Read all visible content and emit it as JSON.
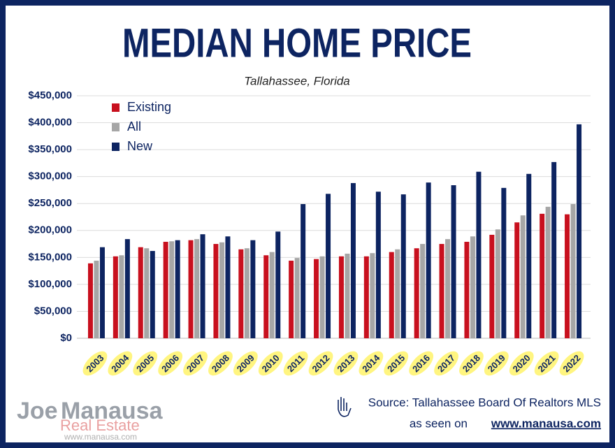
{
  "chart_data": {
    "type": "bar",
    "title": "MEDIAN HOME PRICE",
    "subtitle": "Tallahassee, Florida",
    "categories": [
      "2003",
      "2004",
      "2005",
      "2006",
      "2007",
      "2008",
      "2009",
      "2010",
      "2011",
      "2012",
      "2013",
      "2014",
      "2015",
      "2016",
      "2017",
      "2018",
      "2019",
      "2020",
      "2021",
      "2022"
    ],
    "series": [
      {
        "name": "Existing",
        "color": "#c8101e",
        "values": [
          139000,
          152000,
          169000,
          179000,
          182000,
          175000,
          165000,
          154000,
          144000,
          147000,
          152000,
          152000,
          160000,
          167000,
          175000,
          179000,
          192000,
          215000,
          231000,
          230000
        ]
      },
      {
        "name": "All",
        "color": "#a6a6a6",
        "values": [
          144000,
          154000,
          167000,
          180000,
          184000,
          178000,
          167000,
          160000,
          149000,
          152000,
          157000,
          158000,
          165000,
          175000,
          184000,
          189000,
          202000,
          228000,
          244000,
          249000
        ]
      },
      {
        "name": "New",
        "color": "#0d2461",
        "values": [
          169000,
          184000,
          162000,
          182000,
          193000,
          189000,
          182000,
          198000,
          249000,
          268000,
          288000,
          272000,
          267000,
          289000,
          284000,
          309000,
          279000,
          305000,
          327000,
          397000
        ]
      }
    ],
    "ylim": [
      0,
      450000
    ],
    "yticks": [
      {
        "value": 0,
        "label": "$0"
      },
      {
        "value": 50000,
        "label": "$50,000"
      },
      {
        "value": 100000,
        "label": "$100,000"
      },
      {
        "value": 150000,
        "label": "$150,000"
      },
      {
        "value": 200000,
        "label": "$200,000"
      },
      {
        "value": 250000,
        "label": "$250,000"
      },
      {
        "value": 300000,
        "label": "$300,000"
      },
      {
        "value": 350000,
        "label": "$350,000"
      },
      {
        "value": 400000,
        "label": "$400,000"
      },
      {
        "value": 450000,
        "label": "$450,000"
      }
    ],
    "grid": true,
    "legend": "top-left",
    "source": "Source: Tallahassee Board Of Realtors MLS",
    "seen_on": "as seen on",
    "url": "www.manausa.com",
    "logo": {
      "name_a": "Joe",
      "name_b": "Manausa",
      "line2": "Real Estate",
      "line3": "www.manausa.com"
    }
  }
}
